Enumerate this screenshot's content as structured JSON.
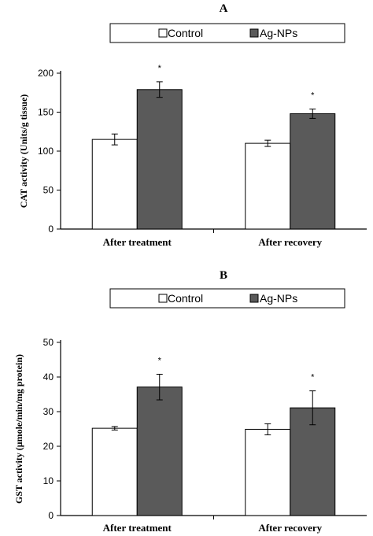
{
  "colors": {
    "control": "#ffffff",
    "agnps": "#5a5a5a",
    "axis": "#000000"
  },
  "chart_data": [
    {
      "type": "bar",
      "title": "A",
      "ylabel": "CAT activity (Units/g tissue)",
      "xlabel": "",
      "categories": [
        "After treatment",
        "After recovery"
      ],
      "series": [
        {
          "name": "Control",
          "values": [
            115,
            110
          ],
          "errors": [
            7,
            4
          ]
        },
        {
          "name": "Ag-NPs",
          "values": [
            179,
            148
          ],
          "errors": [
            10,
            6
          ]
        }
      ],
      "significance": [
        "*",
        "*"
      ],
      "ylim": [
        0,
        200
      ],
      "yticks": [
        0,
        50,
        100,
        150,
        200
      ],
      "legend": "top-center",
      "grid": false
    },
    {
      "type": "bar",
      "title": "B",
      "ylabel": "GST activity (μmole/min/mg protein)",
      "xlabel": "",
      "categories": [
        "After treatment",
        "After recovery"
      ],
      "series": [
        {
          "name": "Control",
          "values": [
            25.2,
            24.9
          ],
          "errors": [
            0.5,
            1.6
          ]
        },
        {
          "name": "Ag-NPs",
          "values": [
            37.1,
            31.1
          ],
          "errors": [
            3.7,
            4.9
          ]
        }
      ],
      "significance": [
        "*",
        "*"
      ],
      "ylim": [
        0,
        50
      ],
      "yticks": [
        0,
        10,
        20,
        30,
        40,
        50
      ],
      "legend": "top-center",
      "grid": false
    }
  ]
}
